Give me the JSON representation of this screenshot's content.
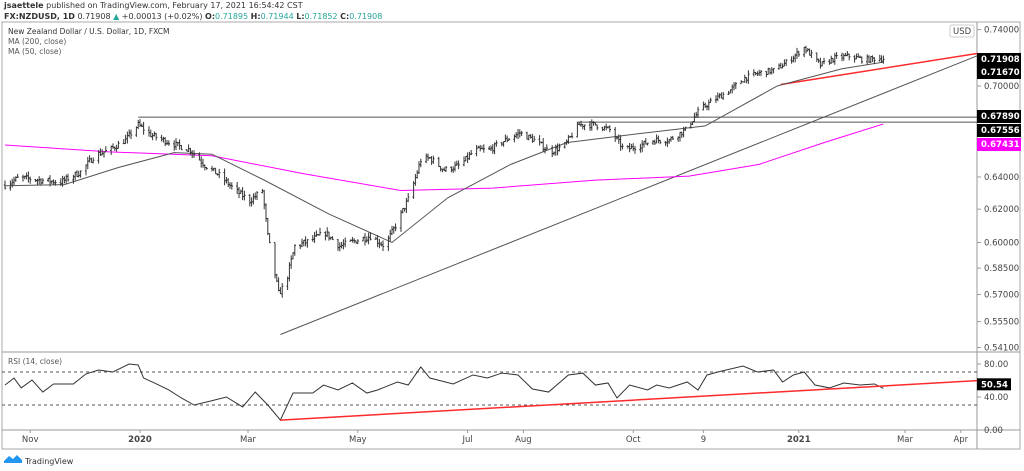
{
  "header": {
    "author": "jsaettele",
    "published": "published on TradingView.com, February 17, 2021 16:54:42 CST",
    "symbol": "FX:NZDUSD, 1D",
    "last": "0.71908",
    "change_icon": "triangle-up-icon",
    "change": "+0.00013 (+0.02%)",
    "o_label": "O:",
    "o": "0.71895",
    "h_label": "H:",
    "h": "0.71944",
    "l_label": "L:",
    "l": "0.71852",
    "c_label": "C:",
    "c": "0.71908"
  },
  "legend": {
    "title": "New Zealand Dollar / U.S. Dollar, 1D, FXCM",
    "ma200": "MA (200, close)",
    "ma50": "MA (50, close)",
    "rsi": "RSI (14, close)"
  },
  "currency_badge": "USD",
  "footer": {
    "logo": "TradingView"
  },
  "colors": {
    "ma200": "#ff00ff",
    "ma50": "#555555",
    "trendline_red": "#ff2a2a",
    "price_bars": "#333333",
    "tag_bg": "#000000"
  },
  "chart_data": [
    {
      "type": "line",
      "title": "",
      "price_scale": "log",
      "ylim": [
        0.541,
        0.745
      ],
      "y_ticks": [
        "0.74000",
        "0.70000",
        "0.64000",
        "0.62000",
        "0.60000",
        "0.58500",
        "0.57000",
        "0.55500",
        "0.54100"
      ],
      "x_ticks": [
        {
          "label": "Nov",
          "date": "2019-11-01"
        },
        {
          "label": "2020",
          "date": "2020-01-01",
          "bold": true
        },
        {
          "label": "Mar",
          "date": "2020-03-01"
        },
        {
          "label": "May",
          "date": "2020-05-01"
        },
        {
          "label": "Jul",
          "date": "2020-07-01"
        },
        {
          "label": "Aug",
          "date": "2020-08-01"
        },
        {
          "label": "Oct",
          "date": "2020-10-01"
        },
        {
          "label": "9",
          "date": "2020-11-09"
        },
        {
          "label": "2021",
          "date": "2021-01-01",
          "bold": true
        },
        {
          "label": "Mar",
          "date": "2021-03-01"
        },
        {
          "label": "Apr",
          "date": "2021-04-01"
        }
      ],
      "price_tags": [
        {
          "value": "0.71908",
          "color": "#000000"
        },
        {
          "value": "0.71670",
          "color": "#000000"
        },
        {
          "value": "0.67890",
          "color": "#000000"
        },
        {
          "value": "0.67556",
          "color": "#000000"
        },
        {
          "value": "0.67431",
          "color": "#ff00ff"
        }
      ],
      "series": [
        {
          "name": "FX:NZDUSD",
          "style": "ohlc-bars",
          "points": [
            [
              "2019-10-18",
              0.635
            ],
            [
              "2019-10-26",
              0.6396
            ],
            [
              "2019-11-06",
              0.6381
            ],
            [
              "2019-11-18",
              0.6368
            ],
            [
              "2019-11-29",
              0.6432
            ],
            [
              "2019-12-07",
              0.6539
            ],
            [
              "2019-12-15",
              0.6572
            ],
            [
              "2019-12-24",
              0.6637
            ],
            [
              "2019-12-31",
              0.6738
            ],
            [
              "2020-01-07",
              0.6671
            ],
            [
              "2020-01-18",
              0.6618
            ],
            [
              "2020-01-29",
              0.6572
            ],
            [
              "2020-02-06",
              0.6475
            ],
            [
              "2020-02-14",
              0.6411
            ],
            [
              "2020-02-23",
              0.6315
            ],
            [
              "2020-03-02",
              0.6252
            ],
            [
              "2020-03-09",
              0.6315
            ],
            [
              "2020-03-12",
              0.6038
            ],
            [
              "2020-03-18",
              0.5705
            ],
            [
              "2020-03-22",
              0.5764
            ],
            [
              "2020-03-27",
              0.5978
            ],
            [
              "2020-04-04",
              0.6008
            ],
            [
              "2020-04-13",
              0.6057
            ],
            [
              "2020-04-21",
              0.5978
            ],
            [
              "2020-04-29",
              0.6008
            ],
            [
              "2020-05-08",
              0.6038
            ],
            [
              "2020-05-16",
              0.5978
            ],
            [
              "2020-05-22",
              0.61
            ],
            [
              "2020-05-30",
              0.6283
            ],
            [
              "2020-06-05",
              0.6507
            ],
            [
              "2020-06-10",
              0.652
            ],
            [
              "2020-06-18",
              0.6444
            ],
            [
              "2020-06-27",
              0.6475
            ],
            [
              "2020-07-05",
              0.6572
            ],
            [
              "2020-07-13",
              0.6572
            ],
            [
              "2020-07-22",
              0.6637
            ],
            [
              "2020-07-30",
              0.6684
            ],
            [
              "2020-08-07",
              0.6637
            ],
            [
              "2020-08-16",
              0.6559
            ],
            [
              "2020-08-24",
              0.6604
            ],
            [
              "2020-09-01",
              0.6738
            ],
            [
              "2020-09-10",
              0.6738
            ],
            [
              "2020-09-18",
              0.6704
            ],
            [
              "2020-09-26",
              0.6572
            ],
            [
              "2020-10-05",
              0.6604
            ],
            [
              "2020-10-13",
              0.6637
            ],
            [
              "2020-10-21",
              0.6637
            ],
            [
              "2020-10-30",
              0.6704
            ],
            [
              "2020-11-07",
              0.6838
            ],
            [
              "2020-11-15",
              0.6907
            ],
            [
              "2020-11-24",
              0.6972
            ],
            [
              "2020-12-02",
              0.7055
            ],
            [
              "2020-12-10",
              0.709
            ],
            [
              "2020-12-19",
              0.7111
            ],
            [
              "2020-12-27",
              0.7182
            ],
            [
              "2021-01-04",
              0.727
            ],
            [
              "2021-01-13",
              0.7146
            ],
            [
              "2021-01-21",
              0.7195
            ],
            [
              "2021-01-29",
              0.721
            ],
            [
              "2021-02-07",
              0.7182
            ],
            [
              "2021-02-14",
              0.7195
            ],
            [
              "2021-02-17",
              0.71908
            ]
          ]
        },
        {
          "name": "MA (200, close)",
          "color": "#ff00ff",
          "points": [
            [
              "2019-10-18",
              0.6605
            ],
            [
              "2019-12-15",
              0.656
            ],
            [
              "2020-02-10",
              0.6535
            ],
            [
              "2020-04-01",
              0.642
            ],
            [
              "2020-05-25",
              0.6315
            ],
            [
              "2020-07-15",
              0.633
            ],
            [
              "2020-09-10",
              0.638
            ],
            [
              "2020-11-01",
              0.6405
            ],
            [
              "2020-12-10",
              0.648
            ],
            [
              "2021-01-15",
              0.662
            ],
            [
              "2021-02-17",
              0.67431
            ]
          ]
        },
        {
          "name": "MA (50, close)",
          "color": "#555555",
          "points": [
            [
              "2019-10-18",
              0.6345
            ],
            [
              "2019-11-20",
              0.6352
            ],
            [
              "2019-12-20",
              0.646
            ],
            [
              "2020-01-20",
              0.6555
            ],
            [
              "2020-02-10",
              0.6545
            ],
            [
              "2020-03-10",
              0.638
            ],
            [
              "2020-04-15",
              0.617
            ],
            [
              "2020-05-20",
              0.6
            ],
            [
              "2020-06-20",
              0.627
            ],
            [
              "2020-07-25",
              0.648
            ],
            [
              "2020-08-25",
              0.662
            ],
            [
              "2020-10-05",
              0.668
            ],
            [
              "2020-11-10",
              0.673
            ],
            [
              "2020-12-20",
              0.7
            ],
            [
              "2021-01-25",
              0.712
            ],
            [
              "2021-02-17",
              0.7167
            ]
          ]
        }
      ],
      "drawings": [
        {
          "type": "trendline",
          "color": "#555555",
          "from": [
            "2020-03-19",
            0.548
          ],
          "to": [
            "2021-05-26",
            0.745
          ]
        },
        {
          "type": "trendline",
          "color": "#ff2a2a",
          "from": [
            "2020-12-22",
            0.701
          ],
          "to": [
            "2021-05-26",
            0.7322
          ]
        },
        {
          "type": "horizontal",
          "color": "#555555",
          "from": "2019-12-31",
          "value": 0.6789
        },
        {
          "type": "horizontal",
          "color": "#555555",
          "from": "2020-08-31",
          "value": 0.67556
        }
      ]
    },
    {
      "type": "line",
      "title": "RSI (14, close)",
      "ylim": [
        0,
        80
      ],
      "y_ticks": [
        "80.00",
        "40.00",
        "0.00"
      ],
      "bands": [
        70,
        30
      ],
      "last_value": "50.54",
      "series": [
        {
          "name": "RSI (14, close)",
          "color": "#333333",
          "points": [
            [
              "2019-10-18",
              54.5
            ],
            [
              "2019-10-23",
              63
            ],
            [
              "2019-10-27",
              51
            ],
            [
              "2019-11-02",
              60.6
            ],
            [
              "2019-11-08",
              46
            ],
            [
              "2019-11-14",
              55.8
            ],
            [
              "2019-11-25",
              55.8
            ],
            [
              "2019-12-02",
              68
            ],
            [
              "2019-12-09",
              72.7
            ],
            [
              "2019-12-17",
              70.3
            ],
            [
              "2019-12-26",
              80
            ],
            [
              "2019-12-31",
              78.8
            ],
            [
              "2020-01-03",
              63
            ],
            [
              "2020-01-09",
              57
            ],
            [
              "2020-01-17",
              48.5
            ],
            [
              "2020-01-24",
              38.8
            ],
            [
              "2020-01-31",
              30.3
            ],
            [
              "2020-02-09",
              35
            ],
            [
              "2020-02-18",
              40
            ],
            [
              "2020-02-27",
              27.9
            ],
            [
              "2020-03-05",
              46
            ],
            [
              "2020-03-12",
              30.3
            ],
            [
              "2020-03-19",
              12
            ],
            [
              "2020-03-26",
              44.8
            ],
            [
              "2020-04-06",
              44.8
            ],
            [
              "2020-04-12",
              54.5
            ],
            [
              "2020-04-20",
              48.5
            ],
            [
              "2020-04-28",
              57
            ],
            [
              "2020-05-06",
              44.8
            ],
            [
              "2020-05-12",
              48.5
            ],
            [
              "2020-05-23",
              58.2
            ],
            [
              "2020-05-29",
              54.5
            ],
            [
              "2020-06-05",
              76.4
            ],
            [
              "2020-06-10",
              63
            ],
            [
              "2020-06-23",
              55.8
            ],
            [
              "2020-07-04",
              66.7
            ],
            [
              "2020-07-12",
              63
            ],
            [
              "2020-07-20",
              69
            ],
            [
              "2020-07-29",
              66.7
            ],
            [
              "2020-08-06",
              49.7
            ],
            [
              "2020-08-15",
              46
            ],
            [
              "2020-08-26",
              66.7
            ],
            [
              "2020-09-03",
              69
            ],
            [
              "2020-09-10",
              54.5
            ],
            [
              "2020-09-17",
              57
            ],
            [
              "2020-09-22",
              38.8
            ],
            [
              "2020-09-29",
              54.5
            ],
            [
              "2020-10-09",
              48.5
            ],
            [
              "2020-10-14",
              54.5
            ],
            [
              "2020-10-21",
              51
            ],
            [
              "2020-10-31",
              58.2
            ],
            [
              "2020-11-06",
              48.5
            ],
            [
              "2020-11-11",
              66.7
            ],
            [
              "2020-11-17",
              70.3
            ],
            [
              "2020-12-01",
              77.6
            ],
            [
              "2020-12-09",
              70.3
            ],
            [
              "2020-12-18",
              72.7
            ],
            [
              "2020-12-23",
              58.2
            ],
            [
              "2020-12-29",
              66.7
            ],
            [
              "2021-01-04",
              70.3
            ],
            [
              "2021-01-10",
              54.5
            ],
            [
              "2021-01-18",
              51
            ],
            [
              "2021-01-26",
              57
            ],
            [
              "2021-02-04",
              54.5
            ],
            [
              "2021-02-12",
              55.8
            ],
            [
              "2021-02-17",
              50.54
            ]
          ]
        }
      ],
      "drawings": [
        {
          "type": "trendline",
          "color": "#ff2a2a",
          "from": [
            "2020-03-19",
            12
          ],
          "to": [
            "2021-05-26",
            65.5
          ]
        }
      ]
    }
  ]
}
